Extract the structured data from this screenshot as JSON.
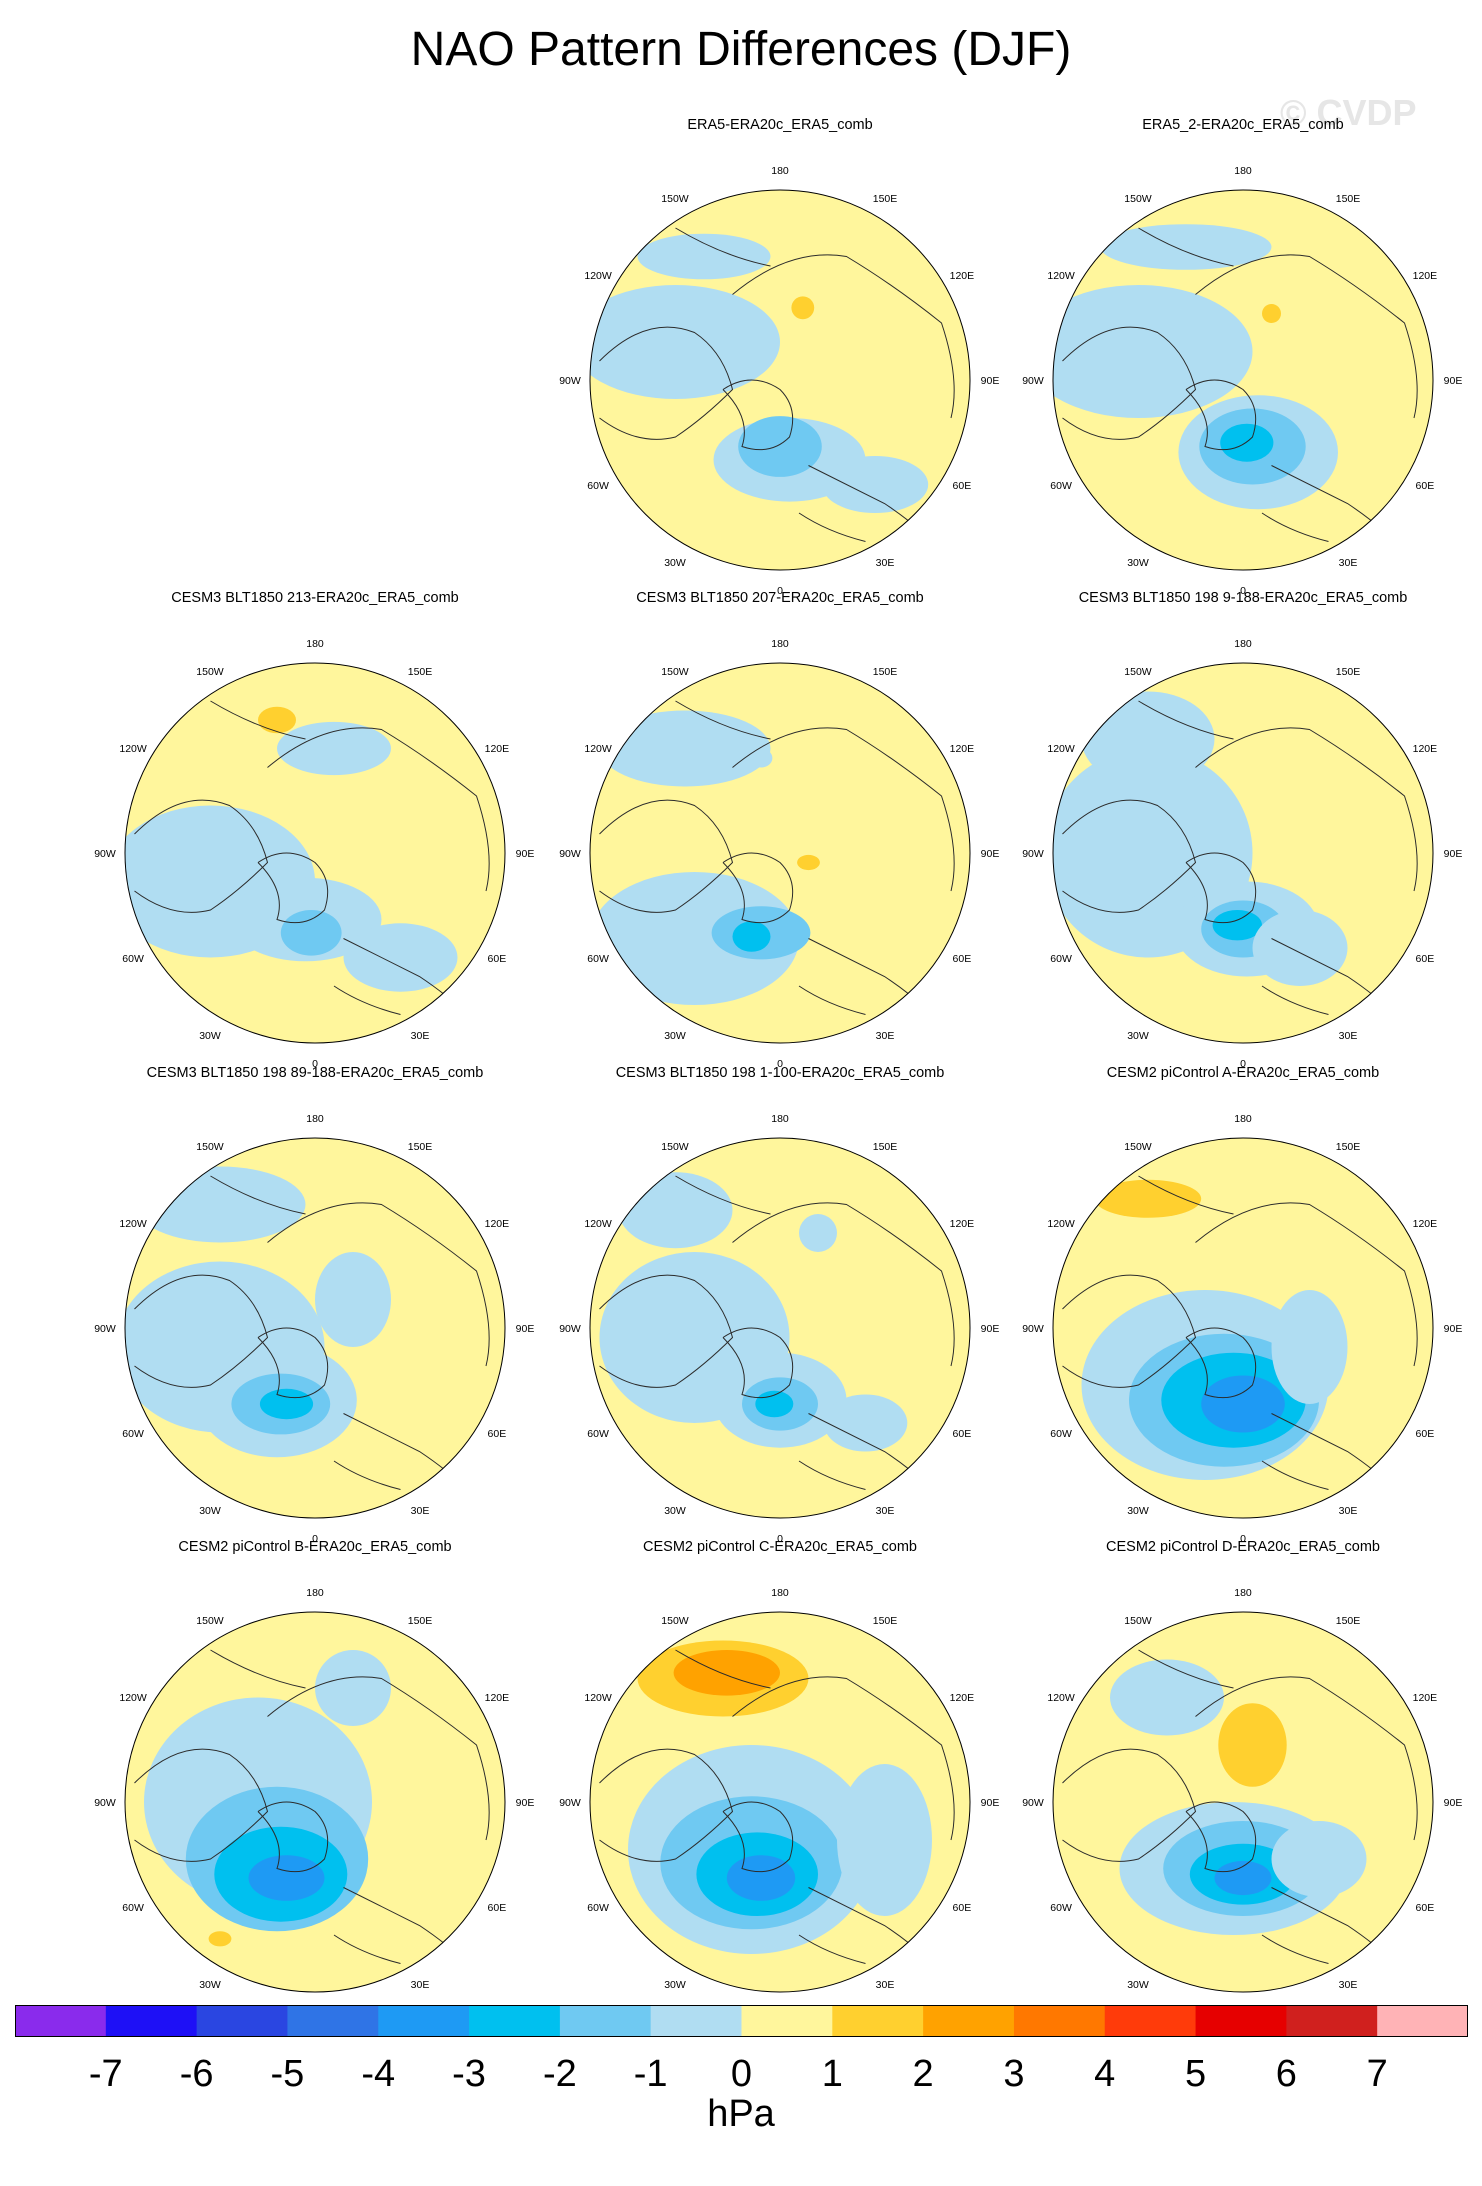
{
  "title": "NAO Pattern Differences (DJF)",
  "watermark": "© CVDP",
  "lon_labels": [
    "180",
    "150E",
    "120E",
    "90E",
    "60E",
    "30E",
    "0",
    "30W",
    "60W",
    "90W",
    "120W",
    "150W"
  ],
  "colors": {
    "level_colors": [
      "#8a2bec",
      "#1e10f6",
      "#2a46e1",
      "#2f74e6",
      "#1e9af4",
      "#00c0ef",
      "#6fc9f2",
      "#b0ddf2",
      "#fff69c",
      "#ffd02f",
      "#ffa200",
      "#ff7800",
      "#ff3b0a",
      "#e60000",
      "#d0201e",
      "#ffb3b6"
    ],
    "land_outline": "#2b2b2b",
    "rim": "#000000"
  },
  "colorbar": {
    "labels": [
      "-7",
      "-6",
      "-5",
      "-4",
      "-3",
      "-2",
      "-1",
      "0",
      "1",
      "2",
      "3",
      "4",
      "5",
      "6",
      "7"
    ],
    "units": "hPa"
  },
  "panels": [
    {
      "title": "ERA5-ERA20c_ERA5_comb",
      "blobs": [
        [
          -0.55,
          -0.2,
          0.55,
          0.3,
          -1
        ],
        [
          0.05,
          0.42,
          0.4,
          0.22,
          -1
        ],
        [
          0.0,
          0.35,
          0.22,
          0.16,
          -2
        ],
        [
          0.12,
          -0.38,
          0.06,
          0.06,
          1
        ],
        [
          -0.4,
          -0.65,
          0.35,
          0.12,
          -1
        ],
        [
          0.5,
          0.55,
          0.28,
          0.15,
          -1
        ]
      ]
    },
    {
      "title": "ERA5_2-ERA20c_ERA5_comb",
      "blobs": [
        [
          -0.55,
          -0.15,
          0.6,
          0.35,
          -1
        ],
        [
          0.08,
          0.38,
          0.42,
          0.3,
          -1
        ],
        [
          0.05,
          0.35,
          0.28,
          0.2,
          -2
        ],
        [
          0.02,
          0.33,
          0.14,
          0.1,
          -3
        ],
        [
          0.15,
          -0.35,
          0.05,
          0.05,
          1
        ],
        [
          -0.3,
          -0.7,
          0.45,
          0.12,
          -1
        ]
      ]
    },
    {
      "title": "CESM3 BLT1850 213-ERA20c_ERA5_comb",
      "blobs": [
        [
          -0.55,
          0.15,
          0.55,
          0.4,
          -1
        ],
        [
          -0.05,
          0.35,
          0.4,
          0.22,
          -1
        ],
        [
          -0.02,
          0.42,
          0.16,
          0.12,
          -2
        ],
        [
          -0.2,
          -0.7,
          0.1,
          0.07,
          1
        ],
        [
          0.45,
          0.55,
          0.3,
          0.18,
          -1
        ],
        [
          0.1,
          -0.55,
          0.3,
          0.14,
          -1
        ]
      ]
    },
    {
      "title": "CESM3 BLT1850 207-ERA20c_ERA5_comb",
      "blobs": [
        [
          -0.45,
          0.45,
          0.55,
          0.35,
          -1
        ],
        [
          -0.1,
          0.42,
          0.26,
          0.14,
          -2
        ],
        [
          -0.15,
          0.44,
          0.1,
          0.08,
          -3
        ],
        [
          0.15,
          0.05,
          0.06,
          0.04,
          1
        ],
        [
          -0.5,
          -0.55,
          0.45,
          0.2,
          -1
        ],
        [
          -0.1,
          -0.5,
          0.06,
          0.05,
          -1
        ]
      ]
    },
    {
      "title": "CESM3 BLT1850 198 9-188-ERA20c_ERA5_comb",
      "blobs": [
        [
          -0.5,
          0.0,
          0.55,
          0.55,
          -1
        ],
        [
          0.02,
          0.4,
          0.38,
          0.25,
          -1
        ],
        [
          0.0,
          0.4,
          0.22,
          0.15,
          -2
        ],
        [
          -0.03,
          0.38,
          0.13,
          0.08,
          -3
        ],
        [
          0.3,
          0.5,
          0.25,
          0.2,
          -1
        ],
        [
          -0.5,
          -0.6,
          0.35,
          0.25,
          -1
        ]
      ]
    },
    {
      "title": "CESM3 BLT1850 198 89-188-ERA20c_ERA5_comb",
      "blobs": [
        [
          -0.5,
          0.1,
          0.55,
          0.45,
          -1
        ],
        [
          -0.2,
          0.38,
          0.42,
          0.3,
          -1
        ],
        [
          -0.18,
          0.4,
          0.26,
          0.16,
          -2
        ],
        [
          -0.15,
          0.4,
          0.14,
          0.08,
          -3
        ],
        [
          0.2,
          -0.15,
          0.2,
          0.25,
          -1
        ],
        [
          -0.5,
          -0.65,
          0.45,
          0.2,
          -1
        ]
      ]
    },
    {
      "title": "CESM3 BLT1850 198 1-100-ERA20c_ERA5_comb",
      "blobs": [
        [
          -0.45,
          0.05,
          0.5,
          0.45,
          -1
        ],
        [
          0.0,
          0.38,
          0.35,
          0.25,
          -1
        ],
        [
          0.0,
          0.4,
          0.2,
          0.14,
          -2
        ],
        [
          -0.03,
          0.4,
          0.1,
          0.07,
          -3
        ],
        [
          0.45,
          0.5,
          0.22,
          0.15,
          -1
        ],
        [
          -0.55,
          -0.62,
          0.3,
          0.2,
          -1
        ],
        [
          0.2,
          -0.5,
          0.1,
          0.1,
          -1
        ]
      ]
    },
    {
      "title": "CESM2 piControl A-ERA20c_ERA5_comb",
      "blobs": [
        [
          -0.2,
          0.3,
          0.65,
          0.5,
          -1
        ],
        [
          -0.1,
          0.38,
          0.5,
          0.35,
          -2
        ],
        [
          -0.05,
          0.38,
          0.38,
          0.25,
          -3
        ],
        [
          0.0,
          0.4,
          0.22,
          0.15,
          -4
        ],
        [
          -0.5,
          -0.68,
          0.28,
          0.1,
          1
        ],
        [
          0.35,
          0.1,
          0.2,
          0.3,
          -1
        ]
      ]
    },
    {
      "title": "CESM2 piControl B-ERA20c_ERA5_comb",
      "blobs": [
        [
          -0.3,
          0.0,
          0.6,
          0.55,
          -1
        ],
        [
          -0.2,
          0.3,
          0.48,
          0.38,
          -2
        ],
        [
          -0.18,
          0.38,
          0.35,
          0.25,
          -3
        ],
        [
          -0.15,
          0.4,
          0.2,
          0.12,
          -4
        ],
        [
          -0.5,
          0.72,
          0.06,
          0.04,
          1
        ],
        [
          0.2,
          -0.6,
          0.2,
          0.2,
          -1
        ]
      ]
    },
    {
      "title": "CESM2 piControl C-ERA20c_ERA5_comb",
      "blobs": [
        [
          -0.15,
          0.25,
          0.65,
          0.55,
          -1
        ],
        [
          -0.15,
          0.32,
          0.48,
          0.35,
          -2
        ],
        [
          -0.12,
          0.38,
          0.32,
          0.22,
          -3
        ],
        [
          -0.1,
          0.4,
          0.18,
          0.12,
          -4
        ],
        [
          -0.3,
          -0.65,
          0.45,
          0.2,
          1
        ],
        [
          -0.28,
          -0.68,
          0.28,
          0.12,
          2
        ],
        [
          0.55,
          0.2,
          0.25,
          0.4,
          -1
        ]
      ]
    },
    {
      "title": "CESM2 piControl D-ERA20c_ERA5_comb",
      "blobs": [
        [
          -0.05,
          0.35,
          0.6,
          0.35,
          -1
        ],
        [
          0.0,
          0.35,
          0.42,
          0.25,
          -2
        ],
        [
          0.0,
          0.38,
          0.28,
          0.16,
          -3
        ],
        [
          0.0,
          0.4,
          0.15,
          0.09,
          -4
        ],
        [
          0.05,
          -0.3,
          0.18,
          0.22,
          1
        ],
        [
          -0.4,
          -0.55,
          0.3,
          0.2,
          -1
        ],
        [
          0.4,
          0.3,
          0.25,
          0.2,
          -1
        ]
      ]
    }
  ]
}
